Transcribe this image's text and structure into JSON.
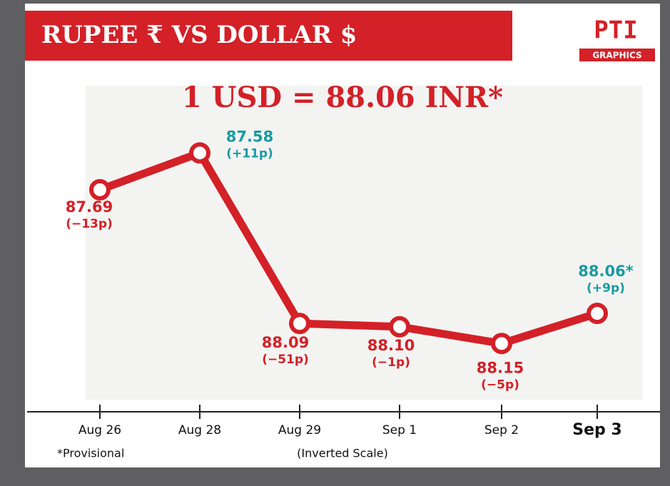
{
  "chart_data": {
    "type": "line",
    "title": "RUPEE ₹  VS  DOLLAR $",
    "subtitle": "1 USD = 88.06 INR*",
    "logo": "PTI",
    "logo_caption": "GRAPHICS",
    "categories": [
      "Aug 26",
      "Aug 28",
      "Aug 29",
      "Sep 1",
      "Sep 2",
      "Sep 3"
    ],
    "values": [
      87.69,
      87.58,
      88.09,
      88.1,
      88.15,
      88.06
    ],
    "value_labels": [
      "87.69",
      "87.58",
      "88.09",
      "88.10",
      "88.15",
      "88.06*"
    ],
    "changes": [
      -13,
      11,
      -51,
      -1,
      -5,
      9
    ],
    "change_labels": [
      "(−13p)",
      "(+11p)",
      "(−51p)",
      "(−1p)",
      "(−5p)",
      "(+9p)"
    ],
    "label_colors": [
      "#d42027",
      "#1a9aa0",
      "#d42027",
      "#d42027",
      "#d42027",
      "#1a9aa0"
    ],
    "color": "#d42027",
    "ylim": [
      88.35,
      87.4
    ],
    "note": "*Provisional",
    "scale_note": "(Inverted Scale)"
  }
}
